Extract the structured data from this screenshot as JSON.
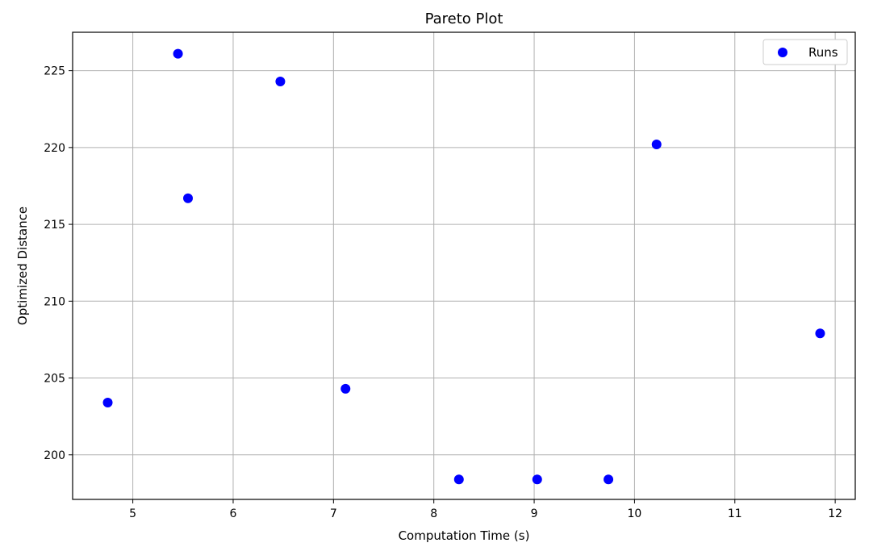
{
  "chart_data": {
    "type": "scatter",
    "title": "Pareto Plot",
    "xlabel": "Computation Time (s)",
    "ylabel": "Optimized Distance",
    "xlim": [
      4.4,
      12.2
    ],
    "ylim": [
      197.1,
      227.5
    ],
    "xticks": [
      5,
      6,
      7,
      8,
      9,
      10,
      11,
      12
    ],
    "yticks": [
      200,
      205,
      210,
      215,
      220,
      225
    ],
    "grid": true,
    "legend_position": "top-right",
    "series": [
      {
        "name": "Runs",
        "color": "#0000ff",
        "x": [
          4.75,
          5.45,
          5.55,
          6.47,
          7.12,
          8.25,
          9.03,
          9.74,
          10.22,
          11.85
        ],
        "y": [
          203.4,
          226.1,
          216.7,
          224.3,
          204.3,
          198.4,
          198.4,
          198.4,
          220.2,
          207.9
        ]
      }
    ]
  }
}
